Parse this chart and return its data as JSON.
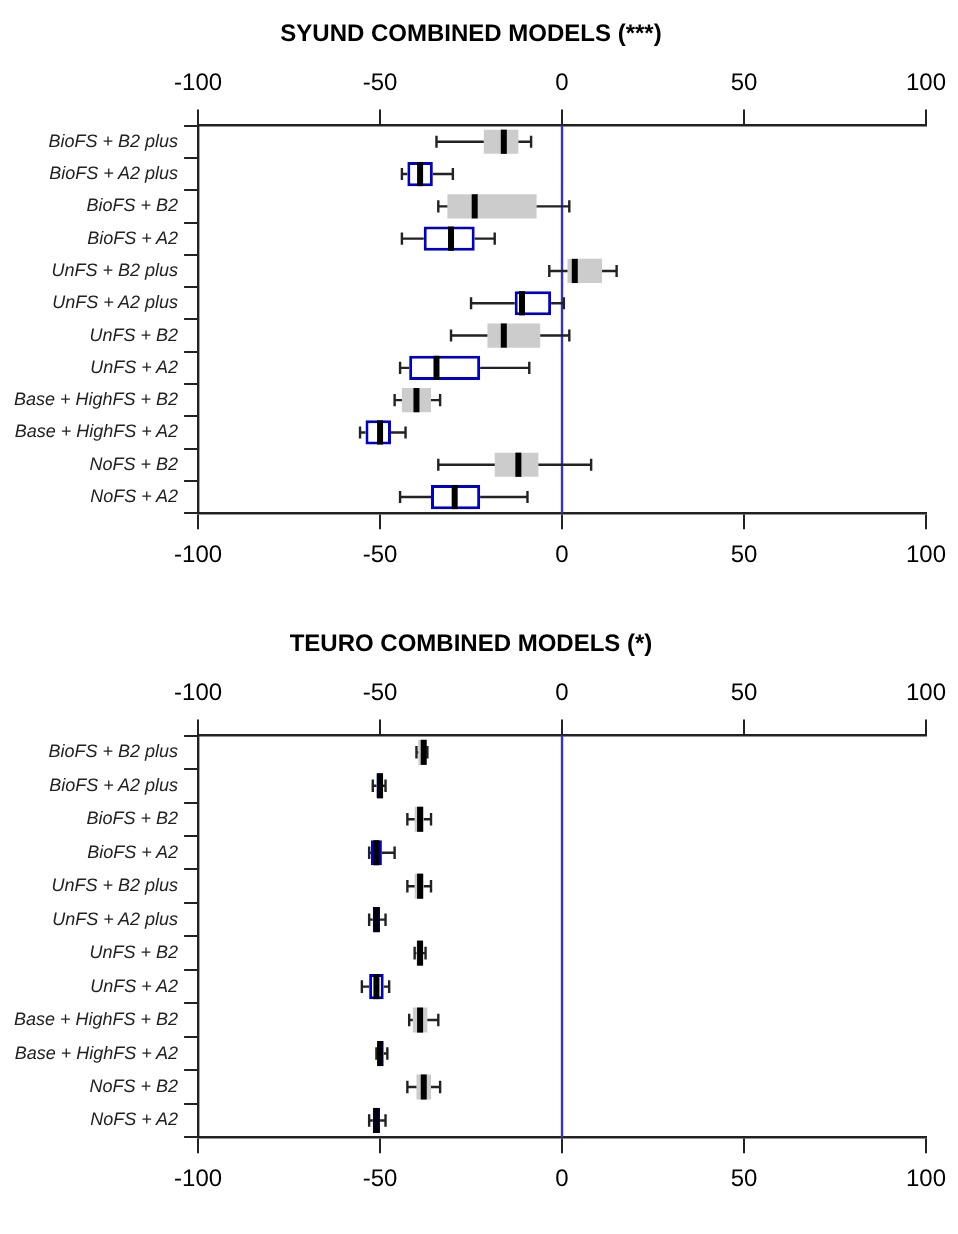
{
  "chart_data": [
    {
      "type": "box",
      "title": "SYUND COMBINED MODELS (***)",
      "orientation": "horizontal",
      "categories": [
        "BioFS + B2 plus",
        "BioFS + A2 plus",
        "BioFS + B2",
        "BioFS + A2",
        "UnFS + B2 plus",
        "UnFS + A2 plus",
        "UnFS + B2",
        "UnFS + A2",
        "Base + HighFS + B2",
        "Base + HighFS + A2",
        "NoFS + B2",
        "NoFS + A2"
      ],
      "xlim": [
        -100,
        100
      ],
      "xticks": [
        -100,
        -50,
        0,
        50,
        100
      ],
      "x2lim": [
        -100,
        100
      ],
      "x2ticks": [
        -100,
        -50,
        0,
        50,
        100
      ],
      "grid": false,
      "legend": false,
      "ref_lines": [
        {
          "axis": "x",
          "value": 0,
          "color": "#3333cc"
        }
      ],
      "series": [
        {
          "color": "#cccccc",
          "boxes": [
            {
              "low": -34.5,
              "q1": -21.5,
              "median": -16,
              "q3": -12,
              "high": -8.5
            },
            null,
            {
              "low": -34,
              "q1": -31.5,
              "median": -24,
              "q3": -7,
              "high": 2
            },
            null,
            {
              "low": -3.5,
              "q1": 1.5,
              "median": 3.5,
              "q3": 11,
              "high": 15
            },
            null,
            {
              "low": -30.5,
              "q1": -20.5,
              "median": -16,
              "q3": -6,
              "high": 2
            },
            null,
            {
              "low": -46,
              "q1": -44,
              "median": -40,
              "q3": -36,
              "high": -33.5
            },
            null,
            {
              "low": -34,
              "q1": -18.5,
              "median": -12,
              "q3": -6.5,
              "high": 8
            },
            null
          ]
        },
        {
          "color": "#0000cc",
          "boxes": [
            null,
            {
              "low": -44,
              "q1": -42.5,
              "median": -39,
              "q3": -35.5,
              "high": -30
            },
            null,
            {
              "low": -44,
              "q1": -38,
              "median": -30.5,
              "q3": -24,
              "high": -18.5
            },
            null,
            {
              "low": -25,
              "q1": -13,
              "median": -11,
              "q3": -3,
              "high": 0.5
            },
            null,
            {
              "low": -44.5,
              "q1": -42,
              "median": -34.5,
              "q3": -22.5,
              "high": -9
            },
            null,
            {
              "low": -55.5,
              "q1": -54,
              "median": -50,
              "q3": -47,
              "high": -43
            },
            null,
            {
              "low": -44.5,
              "q1": -36,
              "median": -29.5,
              "q3": -22.5,
              "high": -9.5
            }
          ]
        }
      ]
    },
    {
      "type": "box",
      "title": "TEURO COMBINED MODELS (*)",
      "orientation": "horizontal",
      "categories": [
        "BioFS + B2 plus",
        "BioFS + A2 plus",
        "BioFS + B2",
        "BioFS + A2",
        "UnFS + B2 plus",
        "UnFS + A2 plus",
        "UnFS + B2",
        "UnFS + A2",
        "Base + HighFS + B2",
        "Base + HighFS + A2",
        "NoFS + B2",
        "NoFS + A2"
      ],
      "xlim": [
        -100,
        100
      ],
      "xticks": [
        -100,
        -50,
        0,
        50,
        100
      ],
      "x2lim": [
        -100,
        100
      ],
      "x2ticks": [
        -100,
        -50,
        0,
        50,
        100
      ],
      "grid": false,
      "legend": false,
      "ref_lines": [
        {
          "axis": "x",
          "value": 0,
          "color": "#3333cc"
        }
      ],
      "series": [
        {
          "color": "#cccccc",
          "boxes": [
            {
              "low": -40,
              "q1": -39.5,
              "median": -38,
              "q3": -37.5,
              "high": -37
            },
            null,
            {
              "low": -42.5,
              "q1": -40.5,
              "median": -39,
              "q3": -38,
              "high": -36
            },
            null,
            {
              "low": -42.5,
              "q1": -40.5,
              "median": -39,
              "q3": -38,
              "high": -36
            },
            null,
            {
              "low": -40.5,
              "q1": -40,
              "median": -39,
              "q3": -38.5,
              "high": -37.5
            },
            null,
            {
              "low": -42,
              "q1": -41,
              "median": -39,
              "q3": -37,
              "high": -34
            },
            null,
            {
              "low": -42.5,
              "q1": -40,
              "median": -38,
              "q3": -36,
              "high": -33.5
            },
            null
          ]
        },
        {
          "color": "#0000cc",
          "boxes": [
            null,
            {
              "low": -52,
              "q1": -51,
              "median": -50,
              "q3": -49.5,
              "high": -48.5
            },
            null,
            {
              "low": -53,
              "q1": -52.5,
              "median": -51,
              "q3": -49.5,
              "high": -46
            },
            null,
            {
              "low": -53,
              "q1": -52,
              "median": -51,
              "q3": -50,
              "high": -48.5
            },
            null,
            {
              "low": -55,
              "q1": -53,
              "median": -51,
              "q3": -49,
              "high": -47.5
            },
            null,
            {
              "low": -51,
              "q1": -50.5,
              "median": -50,
              "q3": -49,
              "high": -48
            },
            null,
            {
              "low": -53,
              "q1": -52,
              "median": -51,
              "q3": -50,
              "high": -48.5
            }
          ]
        }
      ]
    }
  ]
}
